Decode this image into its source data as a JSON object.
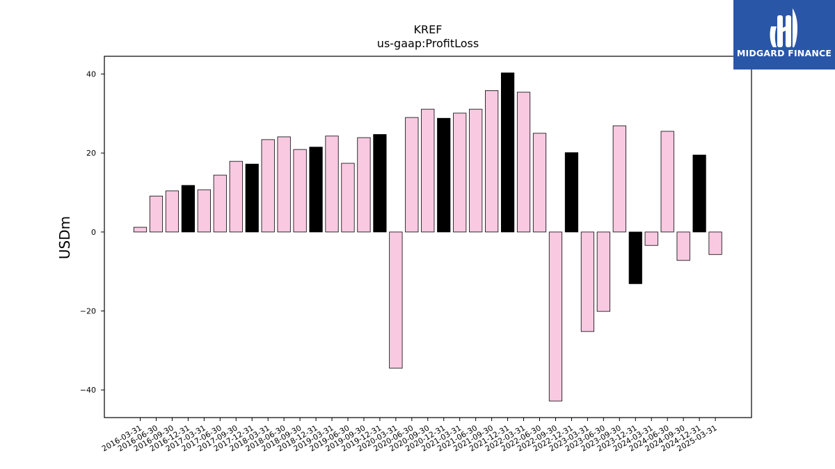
{
  "chart_data": {
    "type": "bar",
    "title": "KREF",
    "subtitle": "us-gaap:ProfitLoss",
    "xlabel": "",
    "ylabel": "USDm",
    "ylim": [
      -47,
      44.5
    ],
    "yticks": [
      40,
      20,
      0,
      -20,
      -40
    ],
    "ytick_labels": [
      "40",
      "20",
      "0",
      "−20",
      "−40"
    ],
    "grid": false,
    "colors": {
      "quarter": "#f9c9e1",
      "fiscal_year_end": "#000000",
      "edge": "#000000"
    },
    "categories": [
      "2016-03-31",
      "2016-06-30",
      "2016-09-30",
      "2016-12-31",
      "2017-03-31",
      "2017-06-30",
      "2017-09-30",
      "2017-12-31",
      "2018-03-31",
      "2018-06-30",
      "2018-09-30",
      "2018-12-31",
      "2019-03-31",
      "2019-06-30",
      "2019-09-30",
      "2019-12-31",
      "2020-03-31",
      "2020-06-30",
      "2020-09-30",
      "2020-12-31",
      "2021-03-31",
      "2021-06-30",
      "2021-09-30",
      "2021-12-31",
      "2022-03-31",
      "2022-06-30",
      "2022-09-30",
      "2022-12-31",
      "2023-03-31",
      "2023-06-30",
      "2023-09-30",
      "2023-12-31",
      "2024-03-31",
      "2024-06-30",
      "2024-09-30",
      "2024-12-31",
      "2025-03-31"
    ],
    "values": [
      1.2,
      9.1,
      10.4,
      11.8,
      10.7,
      14.4,
      17.9,
      17.2,
      23.4,
      24.1,
      20.9,
      21.5,
      24.3,
      17.4,
      23.9,
      24.7,
      -34.5,
      29.0,
      31.1,
      28.8,
      30.1,
      31.1,
      35.8,
      40.3,
      35.4,
      25.0,
      -42.8,
      20.1,
      -25.2,
      -20.1,
      26.9,
      -13.1,
      -3.4,
      25.5,
      -7.2,
      19.5,
      -5.7
    ]
  },
  "logo": {
    "text": "MIDGARD FINANCE",
    "color": "#2a56a8"
  }
}
